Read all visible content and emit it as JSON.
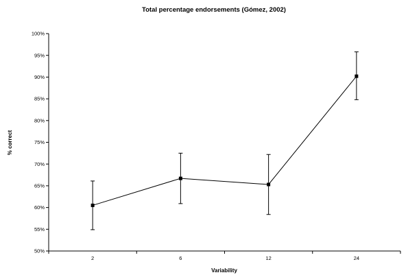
{
  "chart_data": {
    "type": "line",
    "title": "Total percentage endorsements (Gómez, 2002)",
    "xlabel": "Variability",
    "ylabel": "% correct",
    "categories": [
      "2",
      "6",
      "12",
      "24"
    ],
    "series": [
      {
        "values": [
          60.5,
          66.7,
          65.3,
          90.2
        ],
        "error_low": [
          54.9,
          60.9,
          58.4,
          84.8
        ],
        "error_high": [
          66.1,
          72.5,
          72.2,
          95.8
        ]
      }
    ],
    "ylim": [
      50,
      100
    ],
    "yticks": [
      50,
      55,
      60,
      65,
      70,
      75,
      80,
      85,
      90,
      95,
      100
    ],
    "ytick_labels": [
      "50%",
      "55%",
      "60%",
      "65%",
      "70%",
      "75%",
      "80%",
      "85%",
      "90%",
      "95%",
      "100%"
    ],
    "grid": false,
    "marker": "square",
    "colors": {
      "line": "#000000",
      "axis": "#000000"
    }
  }
}
